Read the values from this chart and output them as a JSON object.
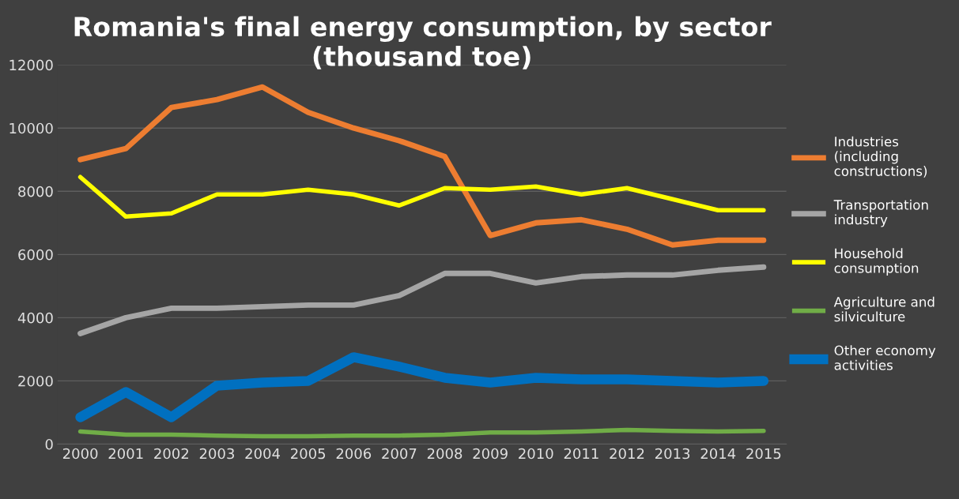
{
  "chart_data": {
    "type": "line",
    "title": "Romania's final energy consumption, by sector\n(thousand toe)",
    "categories": [
      "2000",
      "2001",
      "2002",
      "2003",
      "2004",
      "2005",
      "2006",
      "2007",
      "2008",
      "2009",
      "2010",
      "2011",
      "2012",
      "2013",
      "2014",
      "2015"
    ],
    "series": [
      {
        "name": "Industries\n(including\nconstructions)",
        "color": "#ed7d31",
        "values": [
          9000,
          9350,
          10650,
          10900,
          11300,
          10500,
          10000,
          9600,
          9100,
          6600,
          7000,
          7100,
          6800,
          6300,
          6450,
          6450
        ]
      },
      {
        "name": "Transportation\nindustry",
        "color": "#a5a5a5",
        "values": [
          3500,
          4000,
          4300,
          4300,
          4350,
          4400,
          4400,
          4700,
          5400,
          5400,
          5100,
          5300,
          5350,
          5350,
          5500,
          5600
        ]
      },
      {
        "name": "Household\nconsumption",
        "color": "#ffff00",
        "values": [
          8450,
          7200,
          7300,
          7900,
          7900,
          8050,
          7900,
          7550,
          8100,
          8050,
          8150,
          7900,
          8100,
          7750,
          7400,
          7400
        ]
      },
      {
        "name": "Agriculture and\nsilviculture",
        "color": "#70ad47",
        "values": [
          400,
          300,
          300,
          270,
          250,
          250,
          270,
          270,
          300,
          370,
          370,
          400,
          450,
          420,
          400,
          420
        ]
      },
      {
        "name": "Other economy\nactivities",
        "color": "#0070c0",
        "values": [
          850,
          1650,
          850,
          1850,
          1950,
          2000,
          2750,
          2450,
          2100,
          1950,
          2100,
          2050,
          2050,
          2000,
          1950,
          2000
        ]
      }
    ],
    "ylim": [
      0,
      12000
    ],
    "yticks": [
      0,
      2000,
      4000,
      6000,
      8000,
      10000,
      12000
    ],
    "grid": "y",
    "legend": "right",
    "marker": "none",
    "line_style": "solid"
  }
}
